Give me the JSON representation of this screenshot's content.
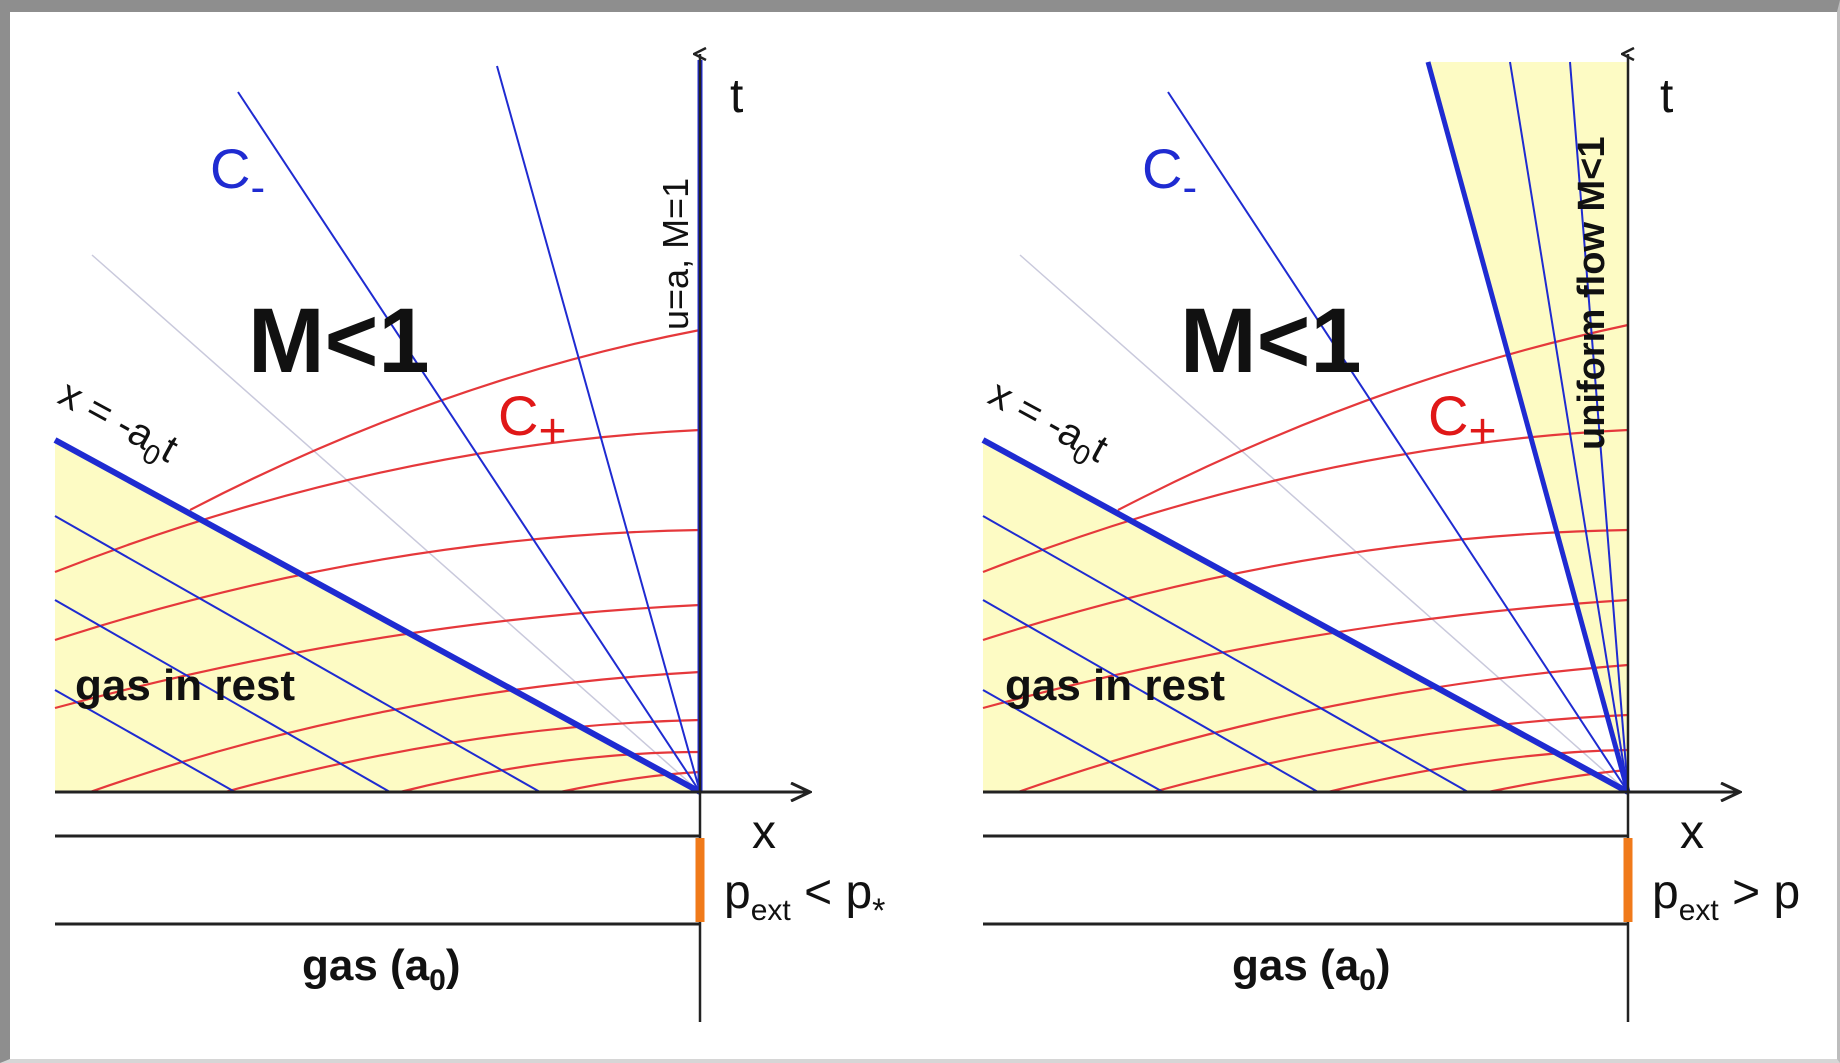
{
  "panels": [
    {
      "id": "left",
      "label_cminus": "C",
      "label_cminus_sub": "-",
      "label_cplus": "C",
      "label_cplus_sub": "+",
      "label_mach": "M<1",
      "label_head_line": "x = -a",
      "label_head_line_sub": "0",
      "label_head_line_tail": "t",
      "label_tail_line": "u=a, M=1",
      "label_rest": "gas in rest",
      "label_t": "t",
      "label_x": "x",
      "label_p": "p",
      "label_p_sub": "ext",
      "label_p_rel": " < p",
      "label_p_star": "*",
      "label_gas": "gas (a",
      "label_gas_sub": "0",
      "label_gas_close": ")"
    },
    {
      "id": "right",
      "label_cminus": "C",
      "label_cminus_sub": "-",
      "label_cplus": "C",
      "label_cplus_sub": "+",
      "label_mach": "M<1",
      "label_head_line": "x = -a",
      "label_head_line_sub": "0",
      "label_head_line_tail": "t",
      "label_uniform": "uniform flow M<1",
      "label_rest": "gas in rest",
      "label_t": "t",
      "label_x": "x",
      "label_p": "p",
      "label_p_sub": "ext",
      "label_p_rel": " > p",
      "label_gas": "gas (a",
      "label_gas_sub": "0",
      "label_gas_close": ")"
    }
  ],
  "colors": {
    "characteristic_minus": "#1f2bd1",
    "characteristic_plus": "#e5383b",
    "rest_region": "#fdfbc4",
    "piston": "#f07a1a",
    "axis": "#222222"
  }
}
